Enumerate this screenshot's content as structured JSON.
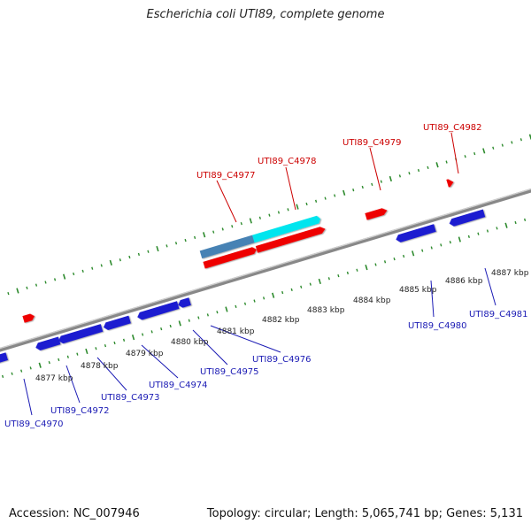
{
  "title": "Escherichia coli UTI89, complete genome",
  "footer": {
    "accession": "Accession: NC_007946",
    "summary": "Topology: circular; Length: 5,065,741 bp; Genes: 5,131"
  },
  "colors": {
    "forward_gene": "#ee0000",
    "reverse_gene": "#1a1ad0",
    "forward_label": "#cc0000",
    "reverse_label": "#1a1ab4",
    "highlight_light": "#00e5ee",
    "highlight_dark": "#4682b4",
    "dark_gene": "#000066",
    "backbone": "#888888",
    "tick": "#2e8b2e"
  },
  "scale_labels": [
    {
      "text": "4877 kbp"
    },
    {
      "text": "4878 kbp"
    },
    {
      "text": "4879 kbp"
    },
    {
      "text": "4880 kbp"
    },
    {
      "text": "4881 kbp"
    },
    {
      "text": "4882 kbp"
    },
    {
      "text": "4883 kbp"
    },
    {
      "text": "4884 kbp"
    },
    {
      "text": "4885 kbp"
    },
    {
      "text": "4886 kbp"
    },
    {
      "text": "4887 kbp"
    }
  ],
  "forward_labels": [
    {
      "text": "UTI89_C4977"
    },
    {
      "text": "UTI89_C4978"
    },
    {
      "text": "UTI89_C4979"
    },
    {
      "text": "UTI89_C4982"
    }
  ],
  "reverse_labels": [
    {
      "text": "UTI89_C4970"
    },
    {
      "text": "UTI89_C4972"
    },
    {
      "text": "UTI89_C4973"
    },
    {
      "text": "UTI89_C4974"
    },
    {
      "text": "UTI89_C4975"
    },
    {
      "text": "UTI89_C4976"
    },
    {
      "text": "UTI89_C4980"
    },
    {
      "text": "UTI89_C4981"
    }
  ]
}
